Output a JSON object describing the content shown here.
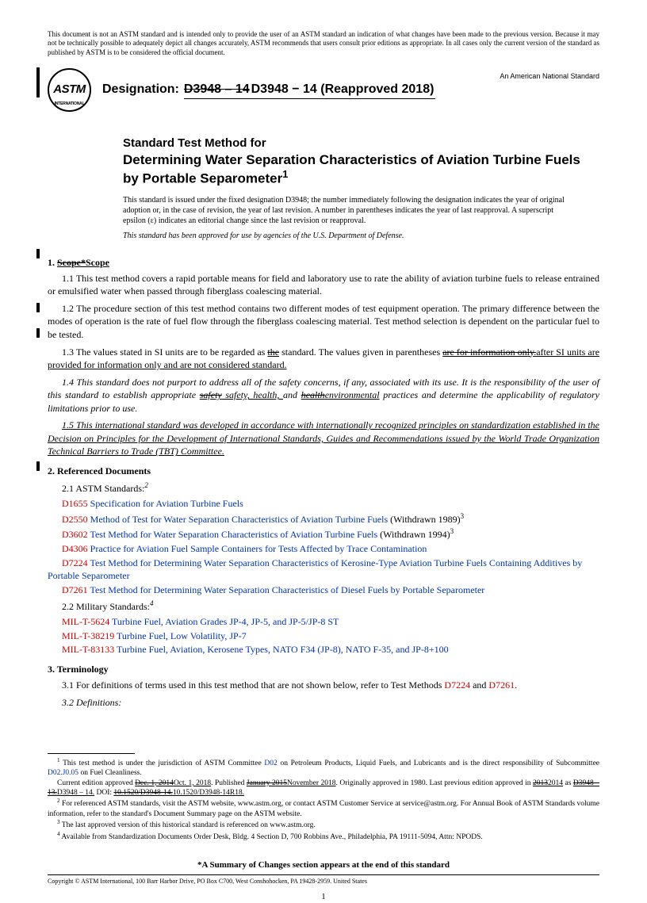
{
  "disclaimer": "This document is not an ASTM standard and is intended only to provide the user of an ASTM standard an indication of what changes have been made to the previous version. Because it may not be technically possible to adequately depict all changes accurately, ASTM recommends that users consult prior editions as appropriate. In all cases only the current version of the standard as published by ASTM is to be considered the official document.",
  "logo": {
    "main": "ASTM",
    "sub": "INTERNATIONAL"
  },
  "designation": {
    "label": "Designation:",
    "old": "D3948 – 14",
    "new": " D3948 − 14 (Reapproved 2018)"
  },
  "nat_std": "An American National Standard",
  "title_small": "Standard Test Method for",
  "title_big": "Determining Water Separation Characteristics of Aviation Turbine Fuels by Portable Separometer",
  "title_sup": "1",
  "issue_note": "This standard is issued under the fixed designation D3948; the number immediately following the designation indicates the year of original adoption or, in the case of revision, the year of last revision. A number in parentheses indicates the year of last reapproval. A superscript epsilon (ε) indicates an editorial change since the last revision or reapproval.",
  "approved_note": "This standard has been approved for use by agencies of the U.S. Department of Defense.",
  "sec1_head_num": "1. ",
  "sec1_head_old": "Scope*",
  "sec1_head_new": "Scope",
  "p11": "1.1 This test method covers a rapid portable means for field and laboratory use to rate the ability of aviation turbine fuels to release entrained or emulsified water when passed through fiberglass coalescing material.",
  "p12": "1.2 The procedure section of this test method contains two different modes of test equipment operation. The primary difference between the modes of operation is the rate of fuel flow through the fiberglass coalescing material. Test method selection is dependent on the particular fuel to be tested.",
  "p13_a": "1.3 The values stated in SI units are to be regarded as ",
  "p13_old1": "the",
  "p13_b": " standard. The values given in parentheses ",
  "p13_old2": "are for information only.",
  "p13_new": "after SI units are provided for information only and are not considered standard.",
  "p14_a": "1.4 This standard does not purport to address all of the safety concerns, if any, associated with its use. It is the responsibility of the user of this standard to establish appropriate ",
  "p14_old1": "safety",
  "p14_new1": " safety, health, ",
  "p14_b": "and ",
  "p14_old2": "health",
  "p14_new2": "environmental",
  "p14_c": " practices and determine the applicability of regulatory limitations prior to use.",
  "p15": "1.5 This international standard was developed in accordance with internationally recognized principles on standardization established in the Decision on Principles for the Development of International Standards, Guides and Recommendations issued by the World Trade Organization Technical Barriers to Trade (TBT) Committee.",
  "sec2_head": "2. Referenced Documents",
  "sec2_1": "2.1 ASTM Standards:",
  "sec2_1_sup": "2",
  "refs_astm": [
    {
      "code": "D1655",
      "title": "Specification for Aviation Turbine Fuels",
      "suffix": ""
    },
    {
      "code": "D2550",
      "title": "Method of Test for Water Separation Characteristics of Aviation Turbine Fuels",
      "suffix": " (Withdrawn 1989)",
      "sup": "3"
    },
    {
      "code": "D3602",
      "title": "Test Method for Water Separation Characteristics of Aviation Turbine Fuels",
      "suffix": " (Withdrawn 1994)",
      "sup": "3"
    },
    {
      "code": "D4306",
      "title": "Practice for Aviation Fuel Sample Containers for Tests Affected by Trace Contamination",
      "suffix": ""
    },
    {
      "code": "D7224",
      "title": "Test Method for Determining Water Separation Characteristics of Kerosine-Type Aviation Turbine Fuels Containing Additives by Portable Separometer",
      "suffix": ""
    },
    {
      "code": "D7261",
      "title": "Test Method for Determining Water Separation Characteristics of Diesel Fuels by Portable Separometer",
      "suffix": ""
    }
  ],
  "sec2_2": "2.2 Military Standards:",
  "sec2_2_sup": "4",
  "refs_mil": [
    {
      "code": "MIL-T-5624",
      "title": "Turbine Fuel, Aviation Grades JP-4, JP-5, and JP-5/JP-8 ST"
    },
    {
      "code": "MIL-T-38219",
      "title": "Turbine Fuel, Low Volatility, JP-7"
    },
    {
      "code": "MIL-T-83133",
      "title": "Turbine Fuel, Aviation, Kerosene Types, NATO F34 (JP-8), NATO F-35, and JP-8+100"
    }
  ],
  "sec3_head": "3. Terminology",
  "p31_a": "3.1 For definitions of terms used in this test method that are not shown below, refer to Test Methods ",
  "p31_ref1": "D7224",
  "p31_mid": " and ",
  "p31_ref2": "D7261",
  "p31_end": ".",
  "p32": "3.2 Definitions:",
  "fn1_a": " This test method is under the jurisdiction of ASTM Committee ",
  "fn1_link1": "D02",
  "fn1_b": " on Petroleum Products, Liquid Fuels, and Lubricants and is the direct responsibility of Subcommittee ",
  "fn1_link2": "D02.J0.05",
  "fn1_c": " on Fuel Cleanliness.",
  "fn1b_a": "Current edition approved ",
  "fn1b_old1": "Dec. 1, 2014",
  "fn1b_new1": "Oct. 1, 2018",
  "fn1b_b": ". Published ",
  "fn1b_old2": "January 2015",
  "fn1b_new2": "November 2018",
  "fn1b_c": ". Originally approved in 1980. Last previous edition approved in ",
  "fn1b_old3": "2013",
  "fn1b_new3": "2014",
  "fn1b_d": " as ",
  "fn1b_old4": "D3948 – 13.",
  "fn1b_new4": "D3948 – 14.",
  "fn1b_e": " DOI: ",
  "fn1b_old5": "10.1520/D3948-14.",
  "fn1b_new5": "10.1520/D3948-14R18.",
  "fn2": " For referenced ASTM standards, visit the ASTM website, www.astm.org, or contact ASTM Customer Service at service@astm.org. For Annual Book of ASTM Standards volume information, refer to the standard's Document Summary page on the ASTM website.",
  "fn3": " The last approved version of this historical standard is referenced on www.astm.org.",
  "fn4": " Available from Standardization Documents Order Desk, Bldg. 4 Section D, 700 Robbins Ave., Philadelphia, PA 19111-5094, Attn: NPODS.",
  "summary": "*A Summary of Changes section appears at the end of this standard",
  "copyright": "Copyright © ASTM International, 100 Barr Harbor Drive, PO Box C700, West Conshohocken, PA 19428-2959. United States",
  "page_num": "1"
}
